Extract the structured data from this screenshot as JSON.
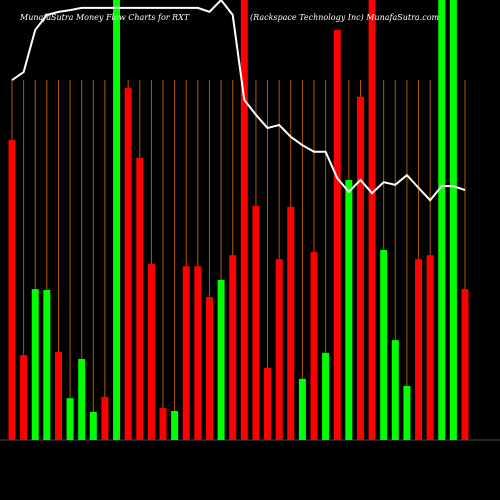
{
  "chart_data": {
    "type": "bar",
    "title": "MunafaSutra  Money Flow  Charts for RXT",
    "subtitle": "(Rackspace  Technology Inc) MunafaSutra.com",
    "values": [
      68.2,
      19.3,
      34.3,
      34.1,
      20,
      9.5,
      18.4,
      6.4,
      9.8,
      100,
      80,
      64.1,
      40,
      7.3,
      6.6,
      39.5,
      39.5,
      32.5,
      36.4,
      42,
      100,
      53.2,
      16.4,
      41.1,
      53,
      13.9,
      42.7,
      19.8,
      93.2,
      59.1,
      78,
      100,
      43.2,
      22.7,
      12.3,
      41.1,
      42,
      100,
      100,
      34.3
    ],
    "colors": [
      "#ff0000",
      "#ff0000",
      "#00ff00",
      "#00ff00",
      "#ff0000",
      "#00ff00",
      "#00ff00",
      "#00ff00",
      "#ff0000",
      "#00ff00",
      "#ff0000",
      "#ff0000",
      "#ff0000",
      "#ff0000",
      "#00ff00",
      "#ff0000",
      "#ff0000",
      "#ff0000",
      "#00ff00",
      "#ff0000",
      "#ff0000",
      "#ff0000",
      "#ff0000",
      "#ff0000",
      "#ff0000",
      "#00ff00",
      "#ff0000",
      "#00ff00",
      "#ff0000",
      "#00ff00",
      "#ff0000",
      "#ff0000",
      "#00ff00",
      "#00ff00",
      "#00ff00",
      "#ff0000",
      "#ff0000",
      "#00ff00",
      "#00ff00",
      "#ff0000"
    ],
    "line_values": [
      81.8,
      83.6,
      93.2,
      96.6,
      97.3,
      97.7,
      98.2,
      98.2,
      98.2,
      98.2,
      98.2,
      98.2,
      98.2,
      98.2,
      98.2,
      98.2,
      98.2,
      97.3,
      100,
      96.6,
      77.3,
      73.9,
      70.9,
      71.6,
      68.9,
      67.0,
      65.5,
      65.5,
      59.5,
      56.4,
      59.1,
      56.1,
      58.6,
      58.0,
      60.2,
      57.3,
      54.5,
      57.7,
      57.7,
      56.8
    ],
    "line_color": "#ffffff",
    "ylim": [
      0,
      100
    ]
  }
}
